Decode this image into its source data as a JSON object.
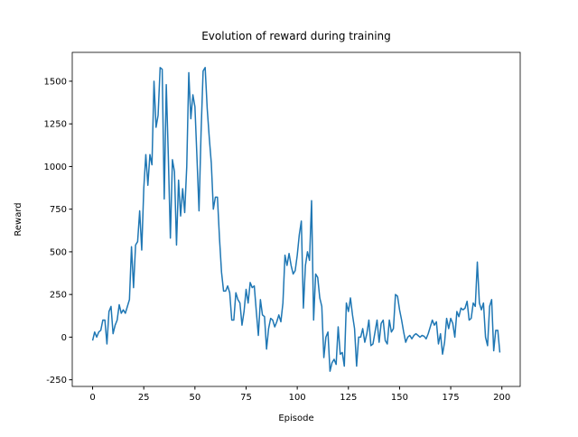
{
  "chart_data": {
    "type": "line",
    "title": "Evolution of reward during training",
    "xlabel": "Episode",
    "ylabel": "Reward",
    "x": [
      0,
      1,
      2,
      3,
      4,
      5,
      6,
      7,
      8,
      9,
      10,
      11,
      12,
      13,
      14,
      15,
      16,
      17,
      18,
      19,
      20,
      21,
      22,
      23,
      24,
      25,
      26,
      27,
      28,
      29,
      30,
      31,
      32,
      33,
      34,
      35,
      36,
      37,
      38,
      39,
      40,
      41,
      42,
      43,
      44,
      45,
      46,
      47,
      48,
      49,
      50,
      51,
      52,
      53,
      54,
      55,
      56,
      57,
      58,
      59,
      60,
      61,
      62,
      63,
      64,
      65,
      66,
      67,
      68,
      69,
      70,
      71,
      72,
      73,
      74,
      75,
      76,
      77,
      78,
      79,
      80,
      81,
      82,
      83,
      84,
      85,
      86,
      87,
      88,
      89,
      90,
      91,
      92,
      93,
      94,
      95,
      96,
      97,
      98,
      99,
      100,
      101,
      102,
      103,
      104,
      105,
      106,
      107,
      108,
      109,
      110,
      111,
      112,
      113,
      114,
      115,
      116,
      117,
      118,
      119,
      120,
      121,
      122,
      123,
      124,
      125,
      126,
      127,
      128,
      129,
      130,
      131,
      132,
      133,
      134,
      135,
      136,
      137,
      138,
      139,
      140,
      141,
      142,
      143,
      144,
      145,
      146,
      147,
      148,
      149,
      150,
      151,
      152,
      153,
      154,
      155,
      156,
      157,
      158,
      159,
      160,
      161,
      162,
      163,
      164,
      165,
      166,
      167,
      168,
      169,
      170,
      171,
      172,
      173,
      174,
      175,
      176,
      177,
      178,
      179,
      180,
      181,
      182,
      183,
      184,
      185,
      186,
      187,
      188,
      189,
      190,
      191,
      192,
      193,
      194,
      195,
      196,
      197,
      198,
      199
    ],
    "series": [
      {
        "name": "Reward",
        "color": "#1f77b4",
        "values": [
          -20,
          30,
          0,
          30,
          40,
          100,
          100,
          -40,
          150,
          180,
          20,
          70,
          100,
          190,
          140,
          160,
          140,
          180,
          220,
          530,
          290,
          540,
          560,
          740,
          510,
          870,
          1070,
          890,
          1070,
          1010,
          1500,
          1230,
          1300,
          1580,
          1570,
          810,
          1480,
          1060,
          580,
          1040,
          970,
          540,
          920,
          710,
          870,
          730,
          1000,
          1550,
          1280,
          1420,
          1350,
          1050,
          740,
          1200,
          1560,
          1580,
          1340,
          1170,
          1020,
          750,
          820,
          820,
          580,
          380,
          270,
          270,
          300,
          260,
          100,
          100,
          260,
          220,
          200,
          70,
          150,
          280,
          200,
          320,
          290,
          300,
          150,
          10,
          220,
          130,
          120,
          -70,
          50,
          110,
          100,
          60,
          90,
          130,
          90,
          200,
          480,
          420,
          490,
          420,
          370,
          390,
          480,
          600,
          680,
          170,
          420,
          500,
          450,
          800,
          100,
          370,
          350,
          230,
          180,
          -120,
          0,
          30,
          -200,
          -150,
          -130,
          -160,
          60,
          -100,
          -90,
          -170,
          200,
          150,
          230,
          130,
          50,
          -170,
          0,
          0,
          50,
          -30,
          20,
          100,
          -50,
          -40,
          30,
          100,
          -30,
          80,
          100,
          -20,
          -40,
          100,
          30,
          50,
          250,
          240,
          160,
          100,
          30,
          -30,
          0,
          10,
          -10,
          10,
          20,
          10,
          0,
          10,
          5,
          -10,
          20,
          60,
          100,
          70,
          90,
          -40,
          20,
          -100,
          -30,
          110,
          50,
          110,
          80,
          0,
          150,
          120,
          170,
          160,
          170,
          210,
          100,
          110,
          200,
          180,
          440,
          200,
          160,
          200,
          0,
          -50,
          180,
          220,
          -80,
          40,
          40,
          -90
        ]
      }
    ],
    "xlim": [
      -9.95,
      208.95
    ],
    "ylim": [
      -289,
      1669
    ],
    "xticks": [
      0,
      25,
      50,
      75,
      100,
      125,
      150,
      175,
      200
    ],
    "yticks": [
      -250,
      0,
      250,
      500,
      750,
      1000,
      1250,
      1500
    ]
  }
}
